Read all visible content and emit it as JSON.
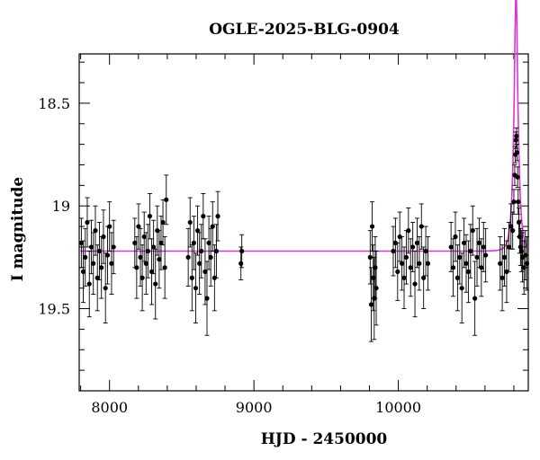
{
  "chart_data": {
    "type": "scatter",
    "title": "OGLE-2025-BLG-0904",
    "xlabel": "HJD - 2450000",
    "ylabel": "I magnitude",
    "xlim": [
      7790,
      10900
    ],
    "ylim": [
      19.9,
      18.26
    ],
    "y_inverted": true,
    "grid": false,
    "legend": "none",
    "xticks": [
      8000,
      9000,
      10000
    ],
    "xtick_labels": [
      "8000",
      "9000",
      "10000"
    ],
    "yticks": [
      18.5,
      19,
      19.5
    ],
    "ytick_labels": [
      "18.5",
      "19",
      "19.5"
    ],
    "colors": {
      "data": "#000000",
      "model": "#dd33dd"
    },
    "series": [
      {
        "type": "errorbar",
        "x": [
          7805,
          7818,
          7832,
          7846,
          7860,
          7874,
          7888,
          7902,
          7916,
          7930,
          7944,
          7958,
          7972,
          7986,
          8000,
          8014,
          8028,
          8175,
          8188,
          8201,
          8214,
          8227,
          8240,
          8253,
          8266,
          8279,
          8292,
          8305,
          8318,
          8331,
          8344,
          8357,
          8370,
          8383,
          8393,
          8545,
          8558,
          8571,
          8584,
          8597,
          8610,
          8623,
          8636,
          8649,
          8662,
          8675,
          8688,
          8701,
          8714,
          8727,
          8740,
          8750,
          8910,
          8916,
          9805,
          9812,
          9819,
          9826,
          9833,
          9840,
          9847,
          9965,
          9980,
          9995,
          10010,
          10025,
          10040,
          10055,
          10070,
          10085,
          10100,
          10115,
          10130,
          10145,
          10160,
          10175,
          10190,
          10205,
          10365,
          10380,
          10395,
          10410,
          10425,
          10440,
          10455,
          10470,
          10485,
          10500,
          10515,
          10530,
          10545,
          10560,
          10575,
          10590,
          10605,
          10705,
          10720,
          10735,
          10750,
          10765,
          10780,
          10792,
          10800,
          10806,
          10810,
          10814,
          10818,
          10822,
          10826,
          10830,
          10835,
          10840,
          10846,
          10852,
          10860,
          10870,
          10880,
          10890
        ],
        "y": [
          19.18,
          19.32,
          19.25,
          19.08,
          19.38,
          19.2,
          19.28,
          19.12,
          19.35,
          19.22,
          19.3,
          19.15,
          19.4,
          19.24,
          19.1,
          19.28,
          19.2,
          19.18,
          19.3,
          19.1,
          19.25,
          19.35,
          19.15,
          19.28,
          19.22,
          19.05,
          19.32,
          19.2,
          19.38,
          19.12,
          19.26,
          19.18,
          19.08,
          19.3,
          18.97,
          19.25,
          19.08,
          19.35,
          19.18,
          19.4,
          19.12,
          19.28,
          19.22,
          19.05,
          19.32,
          19.45,
          19.18,
          19.25,
          19.1,
          19.35,
          19.22,
          19.05,
          19.28,
          19.22,
          19.25,
          19.48,
          19.1,
          19.35,
          19.45,
          19.3,
          19.4,
          19.22,
          19.18,
          19.32,
          19.15,
          19.28,
          19.35,
          19.25,
          19.12,
          19.3,
          19.2,
          19.38,
          19.18,
          19.28,
          19.1,
          19.35,
          19.22,
          19.28,
          19.2,
          19.3,
          19.15,
          19.35,
          19.25,
          19.4,
          19.18,
          19.28,
          19.32,
          19.22,
          19.12,
          19.45,
          19.25,
          19.18,
          19.3,
          19.2,
          19.24,
          19.28,
          19.35,
          19.25,
          19.32,
          19.2,
          19.1,
          19.12,
          18.98,
          18.85,
          18.75,
          18.68,
          18.66,
          18.74,
          18.86,
          18.98,
          19.08,
          19.15,
          19.2,
          19.22,
          19.25,
          19.3,
          19.24,
          19.28
        ],
        "yerr": [
          0.12,
          0.15,
          0.14,
          0.12,
          0.16,
          0.13,
          0.15,
          0.12,
          0.16,
          0.14,
          0.15,
          0.13,
          0.17,
          0.14,
          0.12,
          0.15,
          0.13,
          0.12,
          0.15,
          0.11,
          0.14,
          0.16,
          0.12,
          0.15,
          0.13,
          0.11,
          0.16,
          0.13,
          0.17,
          0.12,
          0.14,
          0.13,
          0.11,
          0.15,
          0.12,
          0.14,
          0.12,
          0.16,
          0.13,
          0.17,
          0.12,
          0.15,
          0.13,
          0.11,
          0.16,
          0.18,
          0.13,
          0.14,
          0.12,
          0.16,
          0.13,
          0.12,
          0.08,
          0.08,
          0.13,
          0.18,
          0.12,
          0.16,
          0.2,
          0.15,
          0.18,
          0.12,
          0.12,
          0.14,
          0.12,
          0.13,
          0.15,
          0.13,
          0.11,
          0.14,
          0.12,
          0.16,
          0.12,
          0.13,
          0.11,
          0.15,
          0.12,
          0.13,
          0.12,
          0.14,
          0.12,
          0.16,
          0.13,
          0.17,
          0.12,
          0.14,
          0.15,
          0.13,
          0.12,
          0.18,
          0.14,
          0.12,
          0.14,
          0.12,
          0.13,
          0.13,
          0.16,
          0.14,
          0.15,
          0.12,
          0.11,
          0.09,
          0.06,
          0.05,
          0.04,
          0.04,
          0.04,
          0.04,
          0.05,
          0.06,
          0.07,
          0.08,
          0.09,
          0.1,
          0.12,
          0.13,
          0.12,
          0.13
        ]
      },
      {
        "type": "line",
        "name": "",
        "model": "PSPL",
        "baseline": 19.22,
        "t0": 10815,
        "tE": 28,
        "u0": 0.32
      }
    ]
  }
}
